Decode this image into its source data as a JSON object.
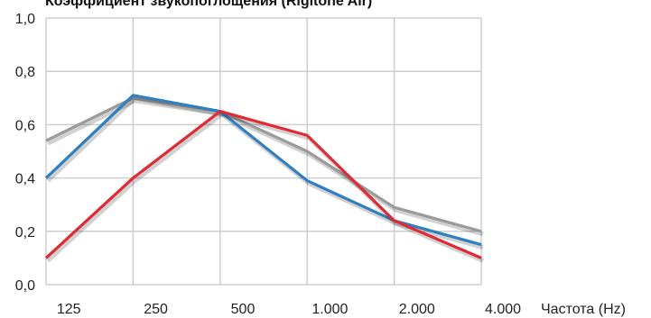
{
  "chart_data": {
    "type": "line",
    "title": "Коэффициент звукопоглощения (Rigitone Air)",
    "xlabel": "Частота (Hz)",
    "ylabel": "",
    "categories": [
      "125",
      "250",
      "500",
      "1.000",
      "2.000",
      "4.000"
    ],
    "ylim": [
      0,
      1
    ],
    "yticks": [
      "0,0",
      "0,2",
      "0,4",
      "0,6",
      "0,8",
      "1,0"
    ],
    "grid": true,
    "series": [
      {
        "color": "#9b9b9b",
        "values": [
          0.54,
          0.7,
          0.65,
          0.5,
          0.29,
          0.2
        ]
      },
      {
        "color": "#2f7fc1",
        "values": [
          0.4,
          0.71,
          0.65,
          0.39,
          0.24,
          0.15
        ]
      },
      {
        "color": "#e02b35",
        "values": [
          0.1,
          0.4,
          0.65,
          0.56,
          0.24,
          0.1
        ]
      }
    ]
  }
}
